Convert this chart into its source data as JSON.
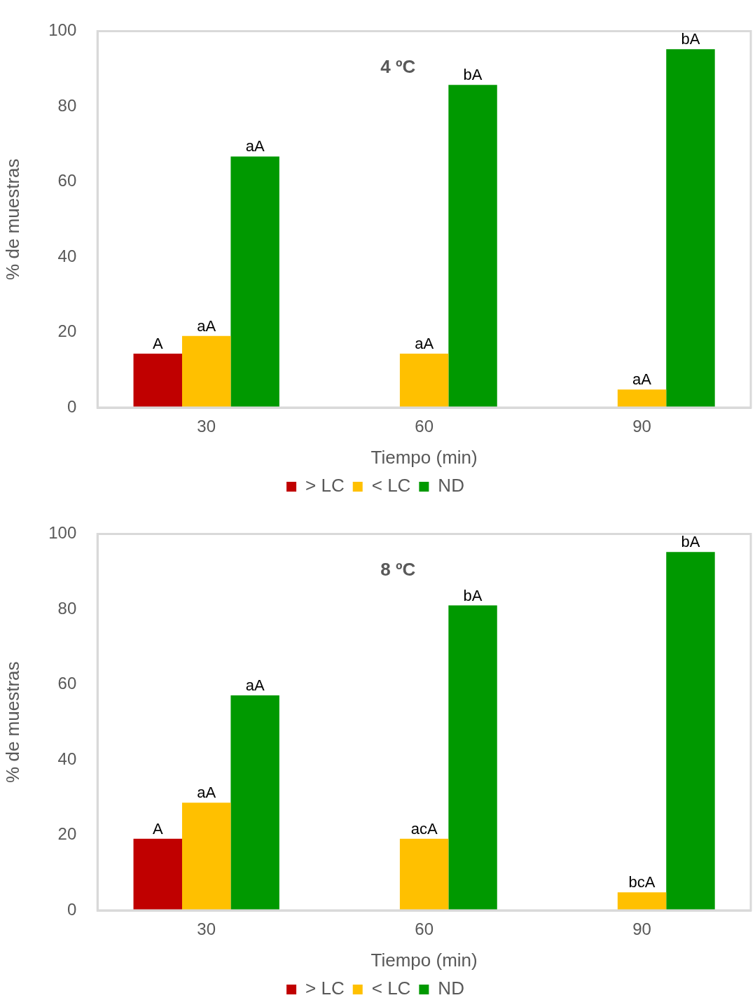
{
  "chart_data": [
    {
      "type": "bar",
      "title": "4 ºC",
      "xlabel": "Tiempo (min)",
      "ylabel": "% de muestras",
      "categories": [
        "30",
        "60",
        "90"
      ],
      "ylim": [
        0,
        100
      ],
      "yticks": [
        0,
        20,
        40,
        60,
        80,
        100
      ],
      "grid": false,
      "legend": "bottom",
      "series": [
        {
          "name": "> LC",
          "color": "#c00000",
          "values": [
            14.3,
            0,
            0
          ],
          "value_labels": [
            "A",
            null,
            null
          ]
        },
        {
          "name": "< LC",
          "color": "#ffc000",
          "values": [
            19.0,
            14.3,
            4.8
          ],
          "value_labels": [
            "aA",
            "aA",
            "aA"
          ]
        },
        {
          "name": "ND",
          "color": "#009900",
          "values": [
            66.7,
            85.7,
            95.2
          ],
          "value_labels": [
            "aA",
            "bA",
            "bA"
          ]
        }
      ]
    },
    {
      "type": "bar",
      "title": "8 ºC",
      "xlabel": "Tiempo (min)",
      "ylabel": "% de muestras",
      "categories": [
        "30",
        "60",
        "90"
      ],
      "ylim": [
        0,
        100
      ],
      "yticks": [
        0,
        20,
        40,
        60,
        80,
        100
      ],
      "grid": false,
      "legend": "bottom",
      "series": [
        {
          "name": "> LC",
          "color": "#c00000",
          "values": [
            19.0,
            0,
            0
          ],
          "value_labels": [
            "A",
            null,
            null
          ]
        },
        {
          "name": "< LC",
          "color": "#ffc000",
          "values": [
            28.6,
            19.0,
            4.8
          ],
          "value_labels": [
            "aA",
            "acA",
            "bcA"
          ]
        },
        {
          "name": "ND",
          "color": "#009900",
          "values": [
            57.1,
            81.0,
            95.2
          ],
          "value_labels": [
            "aA",
            "bA",
            "bA"
          ]
        }
      ]
    }
  ]
}
